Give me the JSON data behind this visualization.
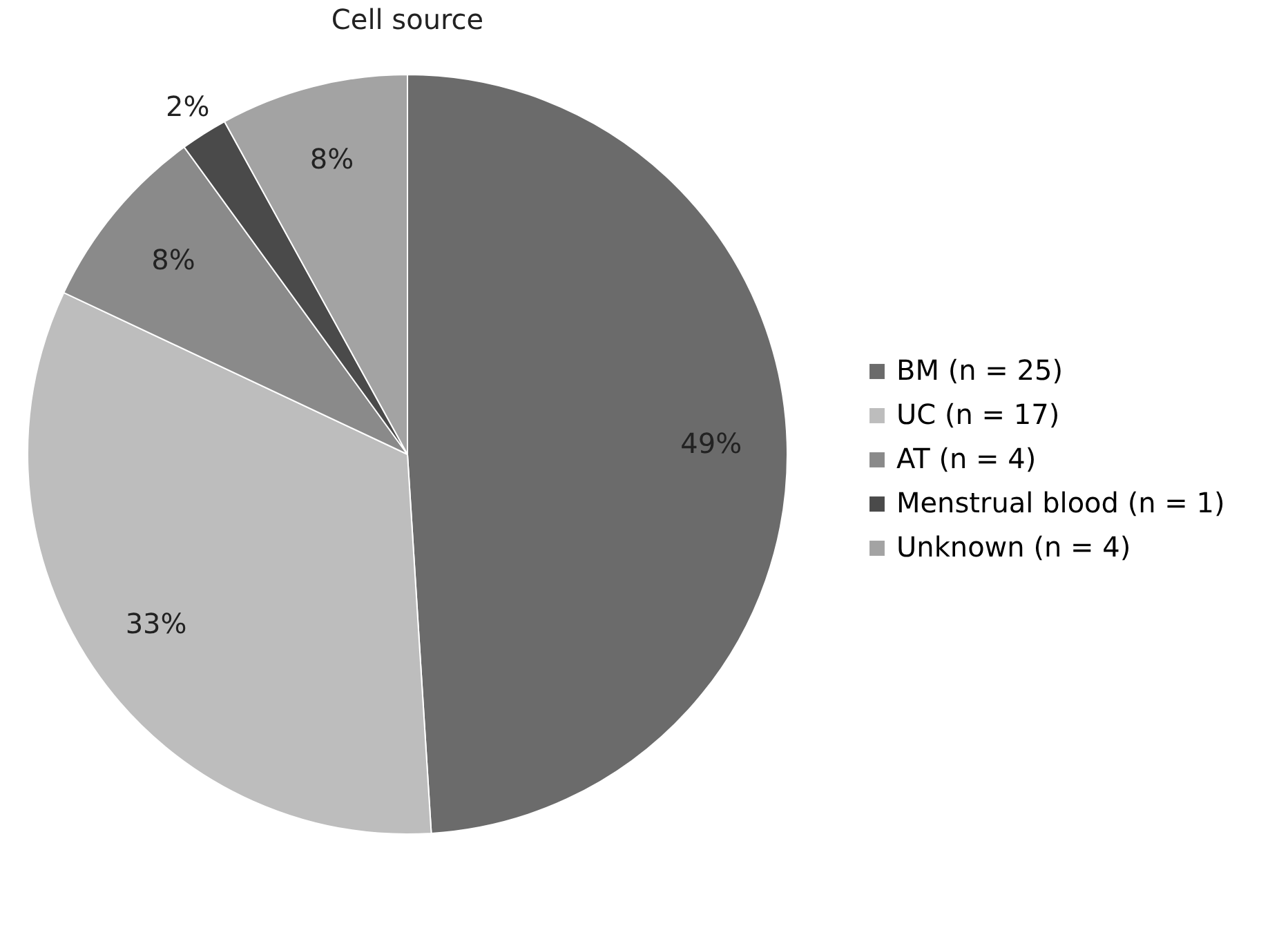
{
  "chart_data": {
    "type": "pie",
    "title": "Cell source",
    "categories": [
      "BM (n = 25)",
      "UC (n = 17)",
      "AT (n = 4)",
      "Menstrual blood (n = 1)",
      "Unknown (n = 4)"
    ],
    "values": [
      49,
      33,
      8,
      2,
      8
    ],
    "colors": [
      "#6b6b6b",
      "#bdbdbd",
      "#8a8a8a",
      "#4a4a4a",
      "#a3a3a3"
    ],
    "value_labels": [
      "49%",
      "33%",
      "8%",
      "2%",
      "8%"
    ],
    "legend": "right"
  }
}
